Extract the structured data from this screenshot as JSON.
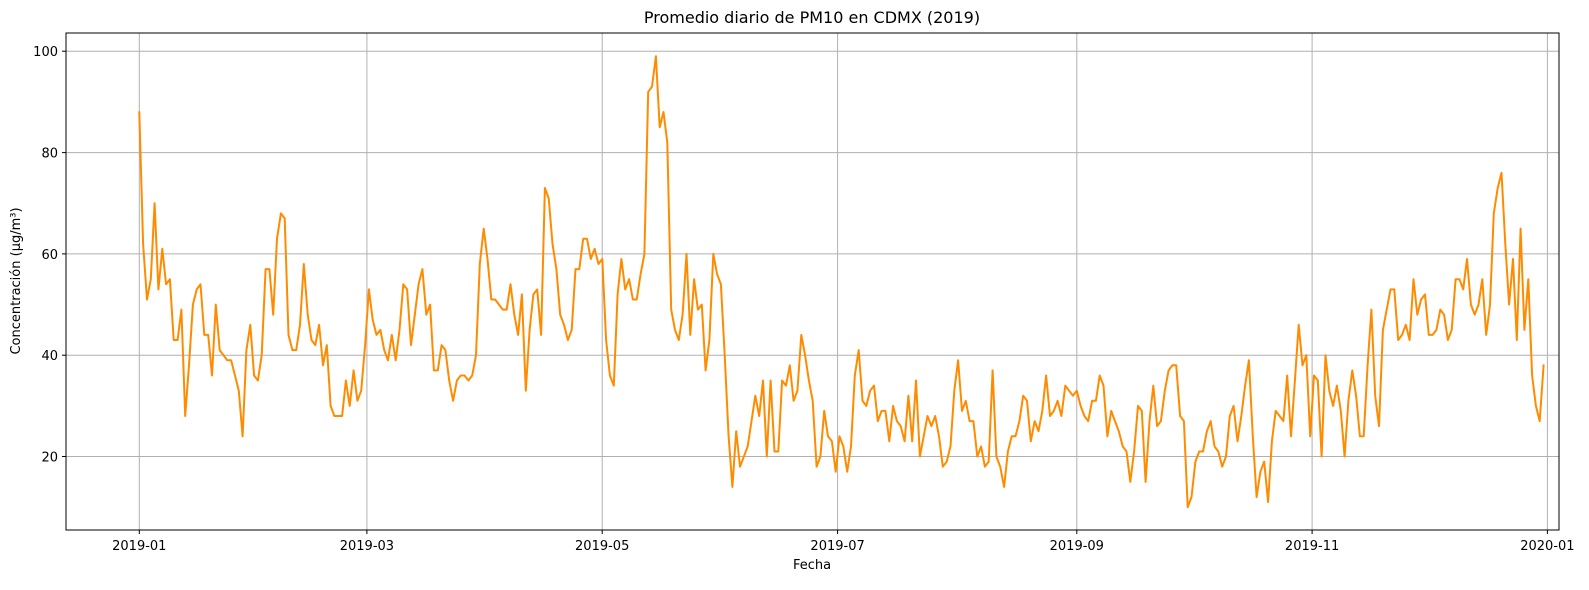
{
  "chart_data": {
    "type": "line",
    "title": "Promedio diario de PM10 en CDMX (2019)",
    "xlabel": "Fecha",
    "ylabel": "Concentración (µg/m³)",
    "grid": true,
    "line_color": "#ff8c00",
    "xlim": [
      "2018-12-13",
      "2020-01-04"
    ],
    "ylim": [
      5.5,
      103.6
    ],
    "x_ticks": [
      {
        "date": "2019-01-01",
        "label": "2019-01"
      },
      {
        "date": "2019-03-01",
        "label": "2019-03"
      },
      {
        "date": "2019-05-01",
        "label": "2019-05"
      },
      {
        "date": "2019-07-01",
        "label": "2019-07"
      },
      {
        "date": "2019-09-01",
        "label": "2019-09"
      },
      {
        "date": "2019-11-01",
        "label": "2019-11"
      },
      {
        "date": "2020-01-01",
        "label": "2020-01"
      }
    ],
    "y_ticks": [
      20,
      40,
      60,
      80,
      100
    ],
    "series": [
      {
        "x_start": "2019-01-01",
        "x_end": "2019-12-31",
        "values": [
          88,
          62,
          51,
          55,
          70,
          53,
          61,
          54,
          55,
          43,
          43,
          49,
          28,
          38,
          50,
          53,
          54,
          44,
          44,
          36,
          50,
          41,
          40,
          39,
          39,
          36,
          33,
          24,
          41,
          46,
          36,
          35,
          40,
          57,
          57,
          48,
          63,
          68,
          67,
          44,
          41,
          41,
          46,
          58,
          48,
          43,
          42,
          46,
          38,
          42,
          30,
          28,
          28,
          28,
          35,
          30,
          37,
          31,
          33,
          42,
          53,
          47,
          44,
          45,
          41,
          39,
          44,
          39,
          45,
          54,
          53,
          42,
          48,
          54,
          57,
          48,
          50,
          37,
          37,
          42,
          41,
          35,
          31,
          35,
          36,
          36,
          35,
          36,
          40,
          58,
          65,
          59,
          51,
          51,
          50,
          49,
          49,
          54,
          48,
          44,
          52,
          33,
          45,
          52,
          53,
          44,
          73,
          71,
          62,
          57,
          48,
          46,
          43,
          45,
          57,
          57,
          63,
          63,
          59,
          61,
          58,
          59,
          43,
          36,
          34,
          52,
          59,
          53,
          55,
          51,
          51,
          56,
          60,
          92,
          93,
          99,
          85,
          88,
          82,
          49,
          45,
          43,
          48,
          60,
          44,
          55,
          49,
          50,
          37,
          43,
          60,
          56,
          54,
          40,
          24,
          14,
          25,
          18,
          20,
          22,
          27,
          32,
          28,
          35,
          20,
          35,
          21,
          21,
          35,
          34,
          38,
          31,
          33,
          44,
          40,
          35,
          31,
          18,
          20,
          29,
          24,
          23,
          17,
          24,
          22,
          17,
          22,
          36,
          41,
          31,
          30,
          33,
          34,
          27,
          29,
          29,
          23,
          30,
          27,
          26,
          23,
          32,
          23,
          35,
          20,
          24,
          28,
          26,
          28,
          24,
          18,
          19,
          22,
          33,
          39,
          29,
          31,
          27,
          27,
          20,
          22,
          18,
          19,
          37,
          20,
          18,
          14,
          21,
          24,
          24,
          27,
          32,
          31,
          23,
          27,
          25,
          29,
          36,
          28,
          29,
          31,
          28,
          34,
          33,
          32,
          33,
          30,
          28,
          27,
          31,
          31,
          36,
          34,
          24,
          29,
          27,
          25,
          22,
          21,
          15,
          21,
          30,
          29,
          15,
          27,
          34,
          26,
          27,
          33,
          37,
          38,
          38,
          28,
          27,
          10,
          12,
          19,
          21,
          21,
          25,
          27,
          22,
          21,
          18,
          20,
          28,
          30,
          23,
          28,
          34,
          39,
          24,
          12,
          17,
          19,
          11,
          23,
          29,
          28,
          27,
          36,
          24,
          35,
          46,
          38,
          40,
          24,
          36,
          35,
          20,
          40,
          33,
          30,
          34,
          29,
          20,
          31,
          37,
          32,
          24,
          24,
          38,
          49,
          32,
          26,
          45,
          49,
          53,
          53,
          43,
          44,
          46,
          43,
          55,
          48,
          51,
          52,
          44,
          44,
          45,
          49,
          48,
          43,
          45,
          55,
          55,
          53,
          59,
          50,
          48,
          50,
          55,
          44,
          50,
          68,
          73,
          76,
          62,
          50,
          59,
          43,
          65,
          45,
          55,
          36,
          30,
          27,
          38
        ]
      }
    ]
  }
}
